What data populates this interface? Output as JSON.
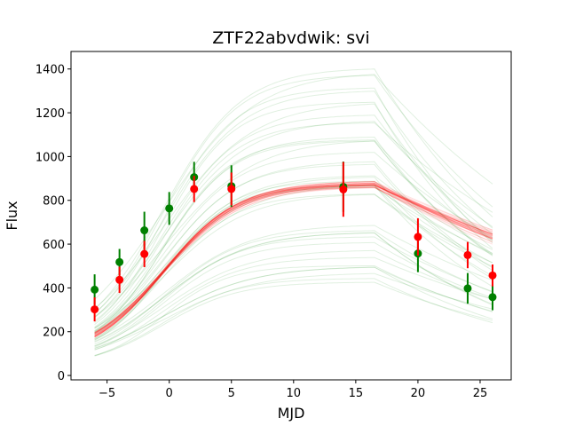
{
  "chart_data": {
    "type": "scatter",
    "title": "ZTF22abvdwik: svi",
    "xlabel": "MJD",
    "ylabel": "Flux",
    "xlim": [
      -7.9,
      27.5
    ],
    "ylim": [
      -20,
      1480
    ],
    "xticks": [
      -5,
      0,
      5,
      10,
      15,
      20,
      25
    ],
    "xtick_labels": [
      "−5",
      "0",
      "5",
      "10",
      "15",
      "20",
      "25"
    ],
    "yticks": [
      0,
      200,
      400,
      600,
      800,
      1000,
      1200,
      1400
    ],
    "ytick_labels": [
      "0",
      "200",
      "400",
      "600",
      "800",
      "1000",
      "1200",
      "1400"
    ],
    "grid": false,
    "colors": {
      "green": "#008000",
      "red": "#ff0000"
    },
    "series": [
      {
        "color": "green",
        "x": [
          -6,
          -4,
          -2,
          0,
          2,
          5,
          14,
          20,
          24,
          26
        ],
        "y": [
          392,
          518,
          663,
          763,
          906,
          865,
          862,
          557,
          398,
          358
        ],
        "yerr": [
          70,
          60,
          85,
          75,
          70,
          95,
          115,
          85,
          70,
          60
        ]
      },
      {
        "color": "red",
        "x": [
          -6,
          -4,
          -2,
          2,
          5,
          14,
          20,
          24,
          26
        ],
        "y": [
          302,
          437,
          555,
          852,
          852,
          850,
          633,
          550,
          457
        ],
        "yerr": [
          55,
          60,
          60,
          60,
          75,
          125,
          85,
          60,
          50
        ]
      }
    ],
    "model_curves": {
      "green": {
        "count": 40,
        "peak_min": 420,
        "peak_max": 1420,
        "alpha": 0.12
      },
      "red": {
        "count": 30,
        "peak_min": 860,
        "peak_max": 890,
        "alpha": 0.12
      }
    }
  }
}
